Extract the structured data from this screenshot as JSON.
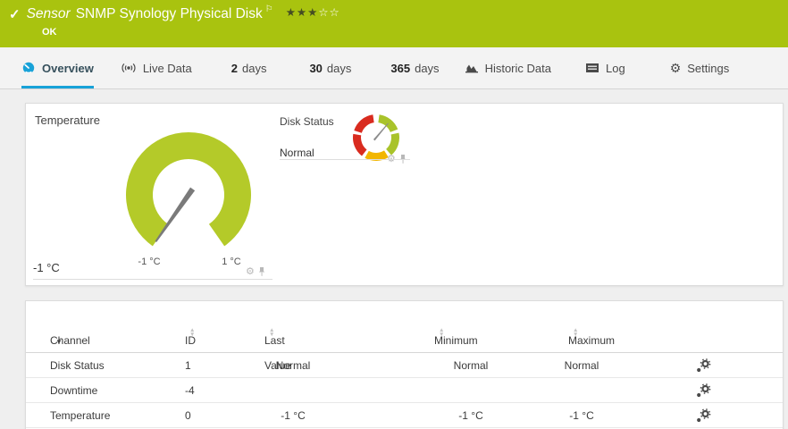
{
  "header": {
    "kind_label": "Sensor",
    "title": "SNMP Synology Physical Disk",
    "status": "OK",
    "stars_filled": "★★★",
    "stars_empty": "☆☆",
    "bg_color": "#a9c30f"
  },
  "icons": {
    "check": "✓",
    "flag": "⚐",
    "gear": "⚙",
    "sort_up": "▲",
    "sort_down": "▼",
    "sort_desc": "▼"
  },
  "tabs": [
    {
      "label": "Overview",
      "icon": "gauge-icon",
      "active": true
    },
    {
      "label": "Live Data",
      "icon": "live-icon"
    },
    {
      "num": "2",
      "label": "days"
    },
    {
      "num": "30",
      "label": "days"
    },
    {
      "num": "365",
      "label": "days"
    },
    {
      "label": "Historic Data",
      "icon": "chart-icon"
    },
    {
      "label": "Log",
      "icon": "log-icon"
    },
    {
      "label": "Settings",
      "icon": "gear-icon"
    }
  ],
  "gauges": {
    "temperature": {
      "title": "Temperature",
      "current_value": "-1 °C",
      "min_label": "-1 °C",
      "max_label": "1 °C",
      "needle_angle": -145,
      "segments": [
        {
          "from": -145,
          "to": 145,
          "color": "#b4ca29"
        }
      ]
    },
    "disk_status": {
      "title": "Disk Status",
      "current_value": "Normal",
      "needle_angle": 40,
      "segments": [
        {
          "from": 8,
          "to": 69,
          "color": "#a9c32a"
        },
        {
          "from": 78,
          "to": 139,
          "color": "#a9c32a"
        },
        {
          "from": 148,
          "to": 209,
          "color": "#f2b600"
        },
        {
          "from": 218,
          "to": 279,
          "color": "#d92b1f"
        },
        {
          "from": 288,
          "to": 352,
          "color": "#d92b1f"
        }
      ]
    }
  },
  "table": {
    "headers": {
      "channel": "Channel",
      "id": "ID",
      "last": "Last Value",
      "min": "Minimum",
      "max": "Maximum"
    },
    "rows": [
      {
        "channel": "Disk Status",
        "id": "1",
        "last": "Normal",
        "min": "Normal",
        "max": "Normal"
      },
      {
        "channel": "Downtime",
        "id": "-4",
        "last": "",
        "min": "",
        "max": ""
      },
      {
        "channel": "Temperature",
        "id": "0",
        "last": "-1 °C",
        "min": "-1 °C",
        "max": "-1 °C"
      }
    ]
  },
  "colors": {
    "header_green": "#a9c30f",
    "gauge_green": "#b4ca29",
    "status_red": "#d92b1f",
    "status_yellow": "#f2b600",
    "accent_blue": "#18a2d8"
  }
}
